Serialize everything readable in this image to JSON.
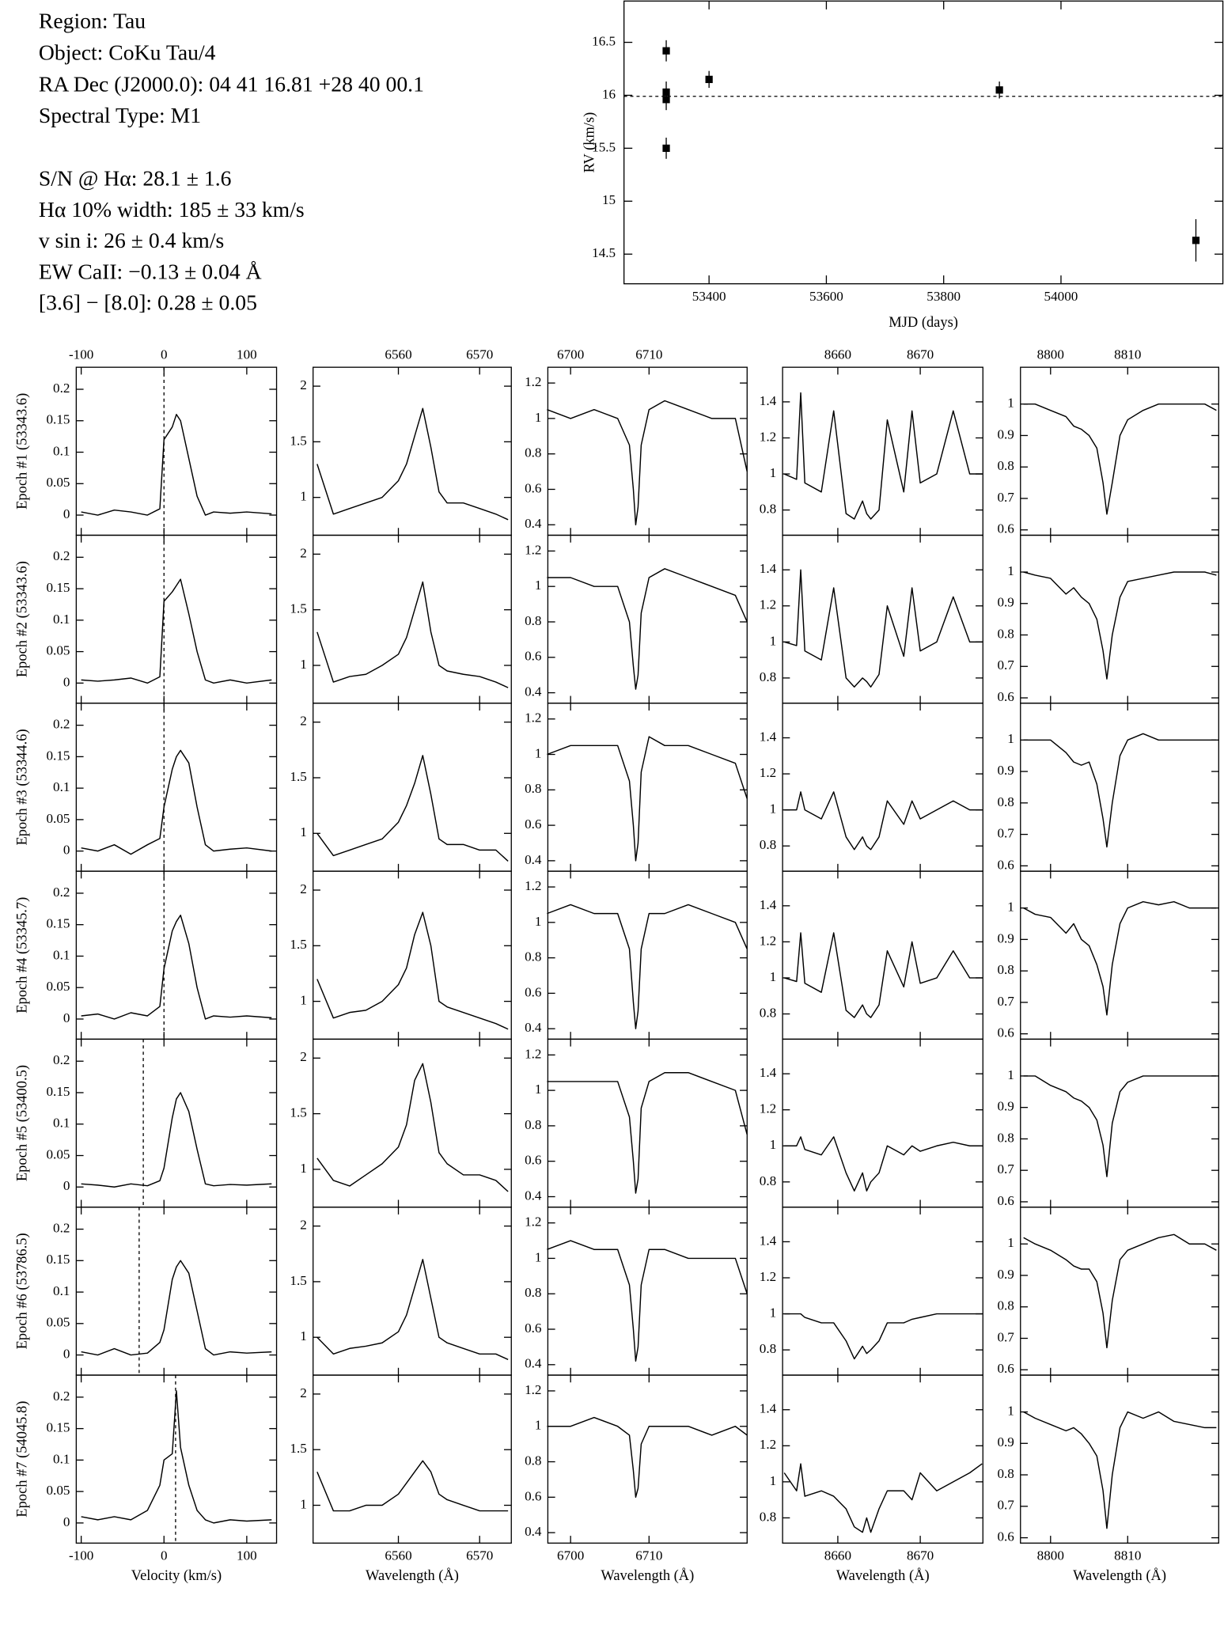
{
  "header": {
    "lines": [
      "Region: Tau",
      "Object: CoKu Tau/4",
      "RA Dec (J2000.0): 04 41 16.81 +28 40 00.1",
      "Spectral Type: M1",
      "S/N @ Hα: 28.1 ± 1.6",
      "Hα 10% width: 185 ± 33 km/s",
      "v sin i: 26 ± 0.4 km/s",
      "EW CaII: −0.13 ± 0.04 Å",
      "[3.6] − [8.0]: 0.28 ± 0.05"
    ]
  },
  "chart_data": [
    {
      "type": "scatter",
      "xlabel": "MJD (days)",
      "ylabel": "RV (km/s)",
      "x": [
        53327,
        53327,
        53327,
        53327,
        53400,
        53895,
        54230
      ],
      "values": [
        16.42,
        16.03,
        15.96,
        15.5,
        16.15,
        16.05,
        14.63
      ],
      "errors": [
        0.1,
        0.1,
        0.1,
        0.1,
        0.08,
        0.08,
        0.2
      ],
      "reference_line": 15.99,
      "color": "#000000",
      "xlim": [
        53255,
        54276
      ],
      "xticks": [
        53400,
        53600,
        53800,
        54000
      ],
      "ylim": [
        14.22,
        16.89
      ],
      "yticks": [
        14.5,
        15,
        15.5,
        16,
        16.5
      ]
    },
    {
      "type": "line",
      "xlabel": "Velocity (km/s)",
      "row_labels": [
        "Epoch #1 (53343.6)",
        "Epoch #2 (53343.6)",
        "Epoch #3 (53344.6)",
        "Epoch #4 (53345.7)",
        "Epoch #5 (53400.5)",
        "Epoch #6 (53786.5)",
        "Epoch #7 (54045.8)"
      ],
      "markers": [
        0,
        0,
        0,
        0,
        -25,
        -30,
        14
      ],
      "xlim": [
        -106,
        136
      ],
      "xticks": [
        -100,
        0,
        100
      ],
      "ylim": [
        -0.032,
        0.235
      ],
      "yticks": [
        0,
        0.05,
        0.1,
        0.15,
        0.2
      ],
      "x": [
        -100,
        -80,
        -60,
        -40,
        -20,
        -5,
        0,
        10,
        15,
        20,
        30,
        40,
        50,
        60,
        80,
        100,
        130
      ],
      "series": [
        {
          "values": [
            0.005,
            0,
            0.008,
            0.005,
            0,
            0.01,
            0.12,
            0.14,
            0.16,
            0.15,
            0.09,
            0.03,
            0,
            0.005,
            0.003,
            0.005,
            0.002
          ]
        },
        {
          "values": [
            0.005,
            0.003,
            0.005,
            0.008,
            0,
            0.01,
            0.13,
            0.145,
            0.155,
            0.165,
            0.11,
            0.05,
            0.005,
            0,
            0.005,
            0,
            0.005
          ]
        },
        {
          "values": [
            0.005,
            0,
            0.01,
            -0.005,
            0.01,
            0.02,
            0.07,
            0.13,
            0.15,
            0.16,
            0.14,
            0.07,
            0.01,
            0,
            0.003,
            0.005,
            0
          ]
        },
        {
          "values": [
            0.005,
            0.008,
            0,
            0.01,
            0.005,
            0.02,
            0.08,
            0.14,
            0.155,
            0.165,
            0.12,
            0.05,
            0,
            0.005,
            0.003,
            0.005,
            0.002
          ]
        },
        {
          "values": [
            0.005,
            0.003,
            0,
            0.005,
            0.002,
            0.01,
            0.03,
            0.11,
            0.14,
            0.15,
            0.12,
            0.06,
            0.005,
            0.002,
            0.004,
            0.003,
            0.005
          ]
        },
        {
          "values": [
            0.005,
            0,
            0.01,
            0,
            0.003,
            0.02,
            0.04,
            0.12,
            0.14,
            0.15,
            0.13,
            0.07,
            0.01,
            0,
            0.005,
            0.003,
            0.005
          ]
        },
        {
          "values": [
            0.01,
            0.005,
            0.01,
            0.005,
            0.02,
            0.06,
            0.1,
            0.11,
            0.21,
            0.12,
            0.06,
            0.02,
            0.005,
            0,
            0.005,
            0.003,
            0.005
          ]
        }
      ]
    },
    {
      "type": "line",
      "xlabel": "Wavelength (Å)",
      "xlim": [
        6549.5,
        6573.9
      ],
      "xticks": [
        6560,
        6570
      ],
      "ylim": [
        0.66,
        2.17
      ],
      "yticks": [
        1,
        1.5,
        2
      ],
      "x": [
        6550,
        6552,
        6554,
        6556,
        6558,
        6560,
        6561,
        6562,
        6563,
        6564,
        6565,
        6566,
        6568,
        6570,
        6572,
        6573.5
      ],
      "series": [
        {
          "values": [
            1.3,
            0.85,
            0.9,
            0.95,
            1.0,
            1.15,
            1.3,
            1.55,
            1.8,
            1.45,
            1.05,
            0.95,
            0.95,
            0.9,
            0.85,
            0.8
          ]
        },
        {
          "values": [
            1.3,
            0.85,
            0.9,
            0.92,
            1.0,
            1.1,
            1.25,
            1.5,
            1.75,
            1.3,
            1.0,
            0.95,
            0.92,
            0.9,
            0.85,
            0.8
          ]
        },
        {
          "values": [
            1.0,
            0.8,
            0.85,
            0.9,
            0.95,
            1.1,
            1.25,
            1.45,
            1.7,
            1.35,
            0.95,
            0.9,
            0.9,
            0.85,
            0.85,
            0.75
          ]
        },
        {
          "values": [
            1.2,
            0.85,
            0.9,
            0.92,
            1.0,
            1.15,
            1.3,
            1.6,
            1.8,
            1.5,
            1.0,
            0.95,
            0.9,
            0.85,
            0.8,
            0.75
          ]
        },
        {
          "values": [
            1.1,
            0.9,
            0.85,
            0.95,
            1.05,
            1.2,
            1.4,
            1.8,
            1.95,
            1.6,
            1.15,
            1.05,
            0.95,
            0.95,
            0.9,
            0.8
          ]
        },
        {
          "values": [
            1.0,
            0.85,
            0.9,
            0.92,
            0.95,
            1.05,
            1.2,
            1.45,
            1.7,
            1.35,
            1.0,
            0.95,
            0.9,
            0.85,
            0.85,
            0.8
          ]
        },
        {
          "values": [
            1.3,
            0.95,
            0.95,
            1.0,
            1.0,
            1.1,
            1.2,
            1.3,
            1.4,
            1.3,
            1.1,
            1.05,
            1.0,
            0.95,
            0.95,
            0.95
          ]
        }
      ]
    },
    {
      "type": "line",
      "xlabel": "Wavelength (Å)",
      "xlim": [
        6697.1,
        6722.5
      ],
      "xticks": [
        6700,
        6710
      ],
      "ylim": [
        0.341,
        1.289
      ],
      "yticks": [
        0.4,
        0.6,
        0.8,
        1,
        1.2
      ],
      "x": [
        6697,
        6700,
        6703,
        6706,
        6707.5,
        6708,
        6708.3,
        6708.6,
        6709,
        6710,
        6712,
        6715,
        6718,
        6721,
        6722.5
      ],
      "series": [
        {
          "values": [
            1.05,
            1.0,
            1.05,
            1.0,
            0.85,
            0.6,
            0.4,
            0.5,
            0.85,
            1.05,
            1.1,
            1.05,
            1.0,
            1.0,
            0.7
          ]
        },
        {
          "values": [
            1.05,
            1.05,
            1.0,
            1.0,
            0.8,
            0.55,
            0.42,
            0.5,
            0.85,
            1.05,
            1.1,
            1.05,
            1.0,
            0.95,
            0.8
          ]
        },
        {
          "values": [
            1.0,
            1.05,
            1.05,
            1.05,
            0.85,
            0.6,
            0.4,
            0.5,
            0.9,
            1.1,
            1.05,
            1.05,
            1.0,
            0.95,
            0.75
          ]
        },
        {
          "values": [
            1.05,
            1.1,
            1.05,
            1.05,
            0.85,
            0.55,
            0.4,
            0.5,
            0.85,
            1.05,
            1.05,
            1.1,
            1.05,
            1.0,
            0.85
          ]
        },
        {
          "values": [
            1.05,
            1.05,
            1.05,
            1.05,
            0.85,
            0.6,
            0.42,
            0.5,
            0.9,
            1.05,
            1.1,
            1.1,
            1.05,
            1.0,
            0.75
          ]
        },
        {
          "values": [
            1.05,
            1.1,
            1.05,
            1.05,
            0.85,
            0.6,
            0.42,
            0.5,
            0.85,
            1.05,
            1.05,
            1.0,
            1.0,
            1.0,
            0.8
          ]
        },
        {
          "values": [
            1.0,
            1.0,
            1.05,
            1.0,
            0.95,
            0.75,
            0.6,
            0.65,
            0.9,
            1.0,
            1.0,
            1.0,
            0.95,
            1.0,
            0.95
          ]
        }
      ]
    },
    {
      "type": "line",
      "xlabel": "Wavelength (Å)",
      "xlim": [
        8653.3,
        8677.6
      ],
      "xticks": [
        8660,
        8670
      ],
      "ylim": [
        0.66,
        1.592
      ],
      "yticks": [
        0.8,
        1,
        1.2,
        1.4
      ],
      "x": [
        8653.5,
        8655,
        8655.5,
        8656,
        8658,
        8659.5,
        8661,
        8662,
        8663,
        8663.5,
        8664,
        8665,
        8666,
        8668,
        8669,
        8670,
        8672,
        8674,
        8676,
        8677.5
      ],
      "series": [
        {
          "values": [
            1.0,
            0.97,
            1.45,
            0.95,
            0.9,
            1.35,
            0.78,
            0.75,
            0.85,
            0.78,
            0.75,
            0.8,
            1.3,
            0.9,
            1.35,
            0.95,
            1.0,
            1.35,
            1.0,
            1.0
          ]
        },
        {
          "values": [
            1.0,
            0.98,
            1.4,
            0.95,
            0.9,
            1.3,
            0.8,
            0.75,
            0.8,
            0.78,
            0.75,
            0.82,
            1.2,
            0.92,
            1.3,
            0.95,
            1.0,
            1.25,
            1.0,
            1.0
          ]
        },
        {
          "values": [
            1.0,
            1.0,
            1.1,
            1.0,
            0.95,
            1.1,
            0.85,
            0.78,
            0.85,
            0.8,
            0.78,
            0.85,
            1.05,
            0.92,
            1.05,
            0.95,
            1.0,
            1.05,
            1.0,
            1.0
          ]
        },
        {
          "values": [
            1.0,
            0.98,
            1.25,
            0.97,
            0.92,
            1.25,
            0.82,
            0.78,
            0.85,
            0.8,
            0.78,
            0.85,
            1.15,
            0.95,
            1.2,
            0.97,
            1.0,
            1.15,
            1.0,
            1.0
          ]
        },
        {
          "values": [
            1.0,
            1.0,
            1.05,
            0.98,
            0.95,
            1.05,
            0.85,
            0.75,
            0.85,
            0.75,
            0.8,
            0.85,
            1.0,
            0.95,
            1.0,
            0.97,
            1.0,
            1.02,
            1.0,
            1.0
          ]
        },
        {
          "values": [
            1.0,
            1.0,
            1.0,
            0.98,
            0.95,
            0.95,
            0.85,
            0.75,
            0.82,
            0.78,
            0.8,
            0.85,
            0.95,
            0.95,
            0.97,
            0.98,
            1.0,
            1.0,
            1.0,
            1.0
          ]
        },
        {
          "values": [
            1.05,
            0.95,
            1.1,
            0.92,
            0.95,
            0.92,
            0.85,
            0.75,
            0.72,
            0.8,
            0.72,
            0.85,
            0.95,
            0.95,
            0.9,
            1.05,
            0.95,
            1.0,
            1.05,
            1.1
          ]
        }
      ]
    },
    {
      "type": "line",
      "xlabel": "Wavelength (Å)",
      "xlim": [
        8796.1,
        8821.8
      ],
      "xticks": [
        8800,
        8810
      ],
      "ylim": [
        0.583,
        1.117
      ],
      "yticks": [
        0.6,
        0.7,
        0.8,
        0.9,
        1
      ],
      "x": [
        8796.5,
        8798,
        8800,
        8802,
        8803,
        8804,
        8805,
        8806,
        8806.8,
        8807.3,
        8808,
        8809,
        8810,
        8812,
        8814,
        8816,
        8818,
        8820,
        8821.5
      ],
      "series": [
        {
          "values": [
            1.0,
            1.0,
            0.98,
            0.96,
            0.93,
            0.92,
            0.9,
            0.86,
            0.75,
            0.65,
            0.75,
            0.9,
            0.95,
            0.98,
            1.0,
            1.0,
            1.0,
            1.0,
            0.98
          ]
        },
        {
          "values": [
            1.0,
            0.99,
            0.98,
            0.93,
            0.95,
            0.92,
            0.9,
            0.85,
            0.75,
            0.66,
            0.8,
            0.92,
            0.97,
            0.98,
            0.99,
            1.0,
            1.0,
            1.0,
            0.99
          ]
        },
        {
          "values": [
            1.0,
            1.0,
            1.0,
            0.96,
            0.93,
            0.92,
            0.93,
            0.86,
            0.75,
            0.66,
            0.8,
            0.95,
            1.0,
            1.02,
            1.0,
            1.0,
            1.0,
            1.0,
            1.0
          ]
        },
        {
          "values": [
            1.0,
            0.98,
            0.97,
            0.92,
            0.95,
            0.9,
            0.88,
            0.82,
            0.75,
            0.66,
            0.82,
            0.95,
            1.0,
            1.02,
            1.01,
            1.02,
            1.0,
            1.0,
            1.0
          ]
        },
        {
          "values": [
            1.0,
            1.0,
            0.97,
            0.95,
            0.93,
            0.92,
            0.9,
            0.86,
            0.78,
            0.68,
            0.85,
            0.95,
            0.98,
            1.0,
            1.0,
            1.0,
            1.0,
            1.0,
            1.0
          ]
        },
        {
          "values": [
            1.02,
            1.0,
            0.98,
            0.95,
            0.93,
            0.92,
            0.92,
            0.88,
            0.78,
            0.67,
            0.82,
            0.95,
            0.98,
            1.0,
            1.02,
            1.03,
            1.0,
            1.0,
            0.98
          ]
        },
        {
          "values": [
            1.0,
            0.98,
            0.96,
            0.94,
            0.95,
            0.93,
            0.9,
            0.86,
            0.75,
            0.63,
            0.8,
            0.95,
            1.0,
            0.98,
            1.0,
            0.97,
            0.96,
            0.95,
            0.95
          ]
        }
      ]
    }
  ]
}
